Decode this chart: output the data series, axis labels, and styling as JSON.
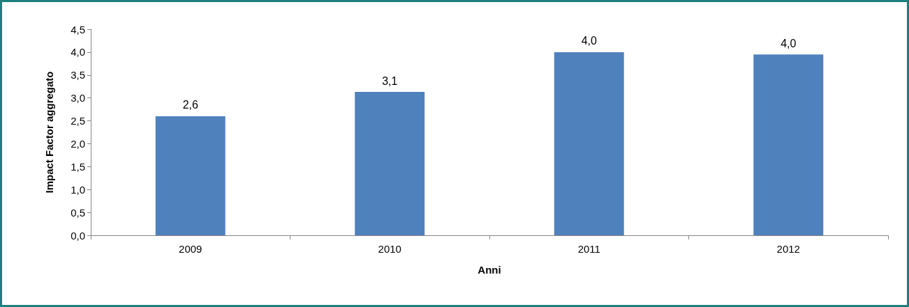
{
  "chart_data": {
    "type": "bar",
    "xlabel": "Anni",
    "ylabel": "Impact Factor aggregato",
    "categories": [
      "2009",
      "2010",
      "2011",
      "2012"
    ],
    "values": [
      2.6,
      3.13,
      4.0,
      3.95
    ],
    "value_labels": [
      "2,6",
      "3,1",
      "4,0",
      "4,0"
    ],
    "color": "#4f81bd",
    "ylim": [
      0,
      4.5
    ],
    "yticks": [
      {
        "value": 0,
        "label": "0,0"
      },
      {
        "value": 0.5,
        "label": "0,5"
      },
      {
        "value": 1,
        "label": "1,0"
      },
      {
        "value": 1.5,
        "label": "1,5"
      },
      {
        "value": 2,
        "label": "2,0"
      },
      {
        "value": 2.5,
        "label": "2,5"
      },
      {
        "value": 3,
        "label": "3,0"
      },
      {
        "value": 3.5,
        "label": "3,5"
      },
      {
        "value": 4,
        "label": "4,0"
      },
      {
        "value": 4.5,
        "label": "4,5"
      }
    ],
    "grid": false
  }
}
